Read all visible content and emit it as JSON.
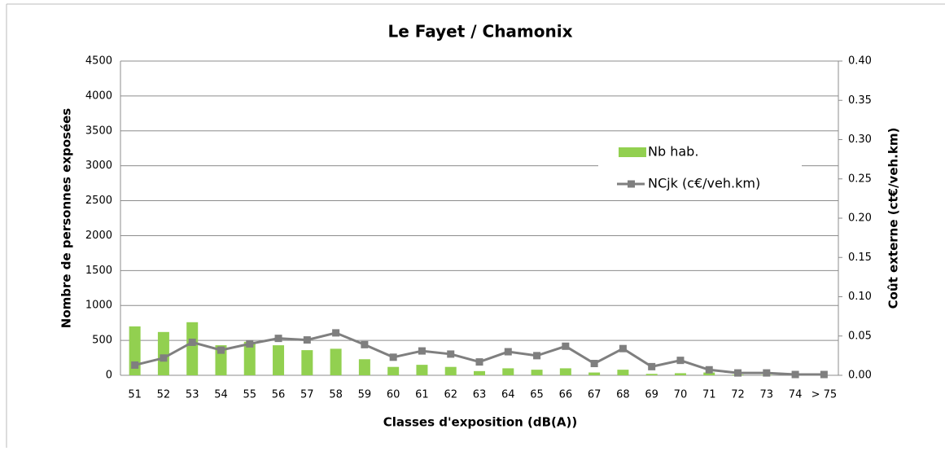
{
  "chart_data": {
    "type": "bar",
    "title": "Le Fayet / Chamonix",
    "x_label": "Classes d'exposition (dB(A))",
    "y_label": "Nombre de personnes exposées",
    "y2_label": "Coût externe (ct€/veh.km)",
    "categories": [
      "51",
      "52",
      "53",
      "54",
      "55",
      "56",
      "57",
      "58",
      "59",
      "60",
      "61",
      "62",
      "63",
      "64",
      "65",
      "66",
      "67",
      "68",
      "69",
      "70",
      "71",
      "72",
      "73",
      "74",
      "> 75"
    ],
    "series": [
      {
        "name": "Nb hab.",
        "type": "bar",
        "color": "#92d050",
        "values": [
          700,
          620,
          760,
          430,
          480,
          430,
          360,
          380,
          230,
          120,
          150,
          120,
          60,
          100,
          80,
          100,
          40,
          80,
          20,
          30,
          40,
          10,
          5,
          0,
          0
        ]
      },
      {
        "name": "NCjk (c€/veh.km)",
        "type": "line",
        "axis": "y2",
        "color": "#7f7f7f",
        "values": [
          0.013,
          0.022,
          0.042,
          0.032,
          0.04,
          0.047,
          0.045,
          0.054,
          0.039,
          0.023,
          0.031,
          0.027,
          0.017,
          0.03,
          0.025,
          0.037,
          0.015,
          0.034,
          0.011,
          0.019,
          0.007,
          0.003,
          0.003,
          0.001,
          0.001
        ]
      }
    ],
    "ylim": [
      0,
      4500
    ],
    "yticks": [
      0,
      500,
      1000,
      1500,
      2000,
      2500,
      3000,
      3500,
      4000,
      4500
    ],
    "y2lim": [
      0,
      0.4
    ],
    "y2ticks": [
      {
        "value": 0,
        "label": "0.00"
      },
      {
        "value": 0.05,
        "label": "0.05"
      },
      {
        "value": 0.1,
        "label": "0.10"
      },
      {
        "value": 0.15,
        "label": "0.15"
      },
      {
        "value": 0.2,
        "label": "0.20"
      },
      {
        "value": 0.25,
        "label": "0.25"
      },
      {
        "value": 0.3,
        "label": "0.30"
      },
      {
        "value": 0.35,
        "label": "0.35"
      },
      {
        "value": 0.4,
        "label": "0.40"
      }
    ],
    "grid": true
  }
}
